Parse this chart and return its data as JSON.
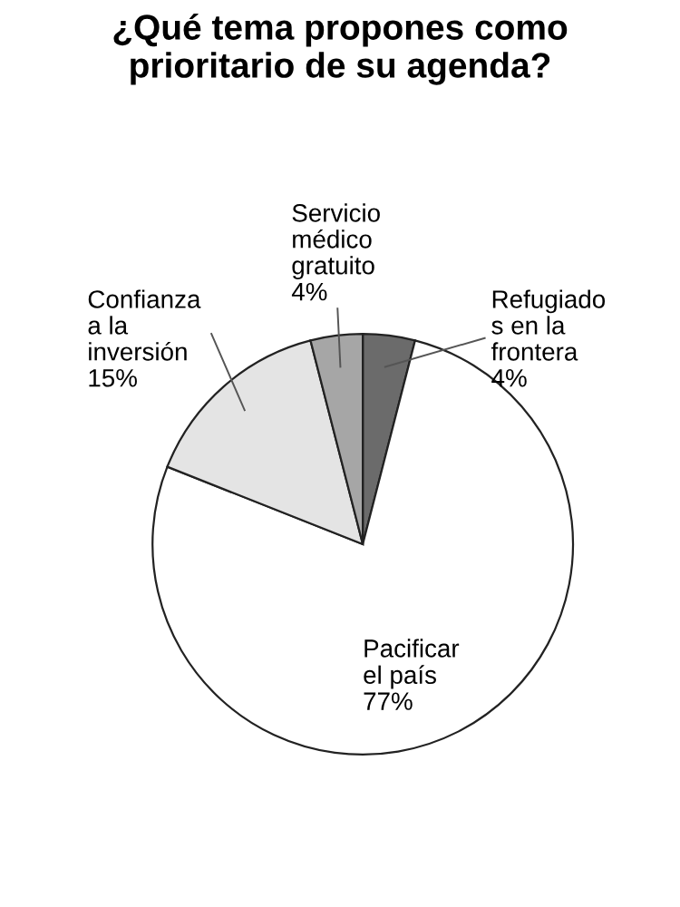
{
  "chart_data": {
    "type": "pie",
    "title": "¿Qué tema propones como prioritario de su agenda?",
    "categories": [
      "Refugiado\ns en la\nfrontera",
      "Pacificar\nel país",
      "Confianza\na la\ninversión",
      "Servicio\nmédico\ngratuito"
    ],
    "values": [
      4,
      77,
      15,
      4
    ],
    "value_labels": [
      "4%",
      "77%",
      "15%",
      "4%"
    ],
    "colors": [
      "#6b6b6b",
      "#ffffff",
      "#e4e4e4",
      "#a6a6a6"
    ]
  }
}
